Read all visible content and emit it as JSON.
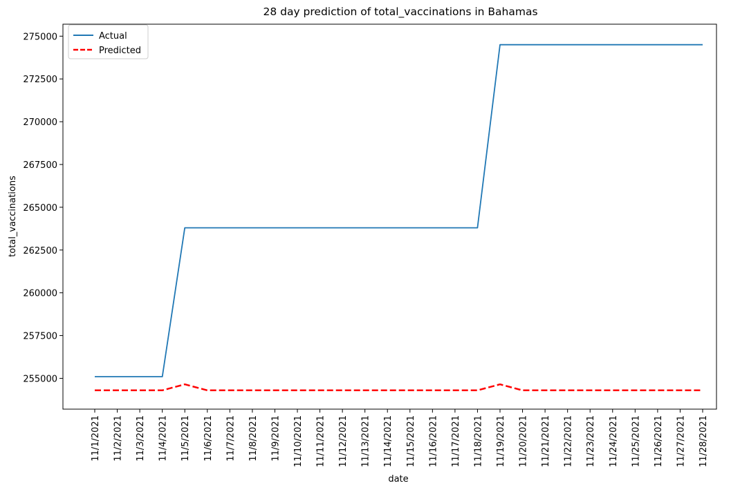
{
  "chart_data": {
    "type": "line",
    "title": "28 day prediction of total_vaccinations in Bahamas",
    "xlabel": "date",
    "ylabel": "total_vaccinations",
    "x": [
      "11/1/2021",
      "11/2/2021",
      "11/3/2021",
      "11/4/2021",
      "11/5/2021",
      "11/6/2021",
      "11/7/2021",
      "11/8/2021",
      "11/9/2021",
      "11/10/2021",
      "11/11/2021",
      "11/12/2021",
      "11/13/2021",
      "11/14/2021",
      "11/15/2021",
      "11/16/2021",
      "11/17/2021",
      "11/18/2021",
      "11/19/2021",
      "11/20/2021",
      "11/21/2021",
      "11/22/2021",
      "11/23/2021",
      "11/24/2021",
      "11/25/2021",
      "11/26/2021",
      "11/27/2021",
      "11/28/2021"
    ],
    "yticks": [
      255000,
      257500,
      260000,
      262500,
      265000,
      267500,
      270000,
      272500,
      275000
    ],
    "ylim": [
      253200,
      275700
    ],
    "grid": false,
    "legend_position": "top-left",
    "series": [
      {
        "name": "Actual",
        "color": "#1f77b4",
        "style": "solid",
        "values": [
          255100,
          255100,
          255100,
          255100,
          263800,
          263800,
          263800,
          263800,
          263800,
          263800,
          263800,
          263800,
          263800,
          263800,
          263800,
          263800,
          263800,
          263800,
          274500,
          274500,
          274500,
          274500,
          274500,
          274500,
          274500,
          274500,
          274500,
          274500
        ]
      },
      {
        "name": "Predicted",
        "color": "#ff0000",
        "style": "dashed",
        "values": [
          254300,
          254300,
          254300,
          254300,
          254650,
          254300,
          254300,
          254300,
          254300,
          254300,
          254300,
          254300,
          254300,
          254300,
          254300,
          254300,
          254300,
          254300,
          254650,
          254300,
          254300,
          254300,
          254300,
          254300,
          254300,
          254300,
          254300,
          254300
        ]
      }
    ]
  }
}
